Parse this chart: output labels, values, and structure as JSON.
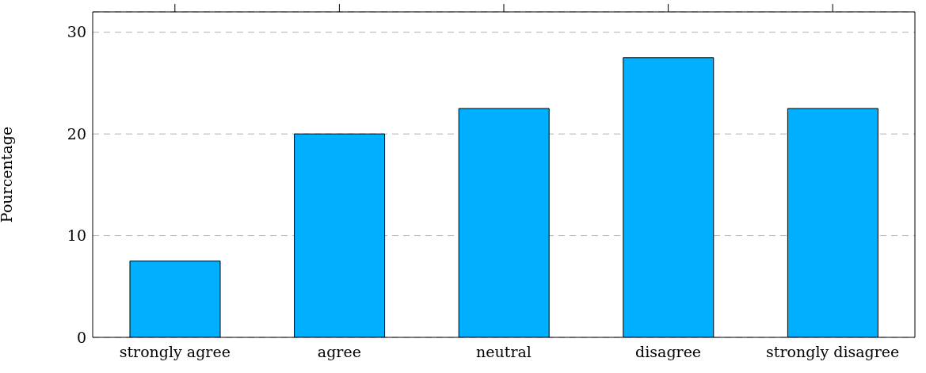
{
  "chart_data": {
    "type": "bar",
    "ylabel": "Pourcentage",
    "categories": [
      "strongly agree",
      "agree",
      "neutral",
      "disagree",
      "strongly disagree"
    ],
    "values": [
      7.5,
      20,
      22.5,
      27.5,
      22.5
    ],
    "color": "#00b0ff",
    "ylim": [
      0,
      32
    ],
    "yticks": [
      0,
      10,
      20,
      30
    ],
    "grid": "y"
  }
}
